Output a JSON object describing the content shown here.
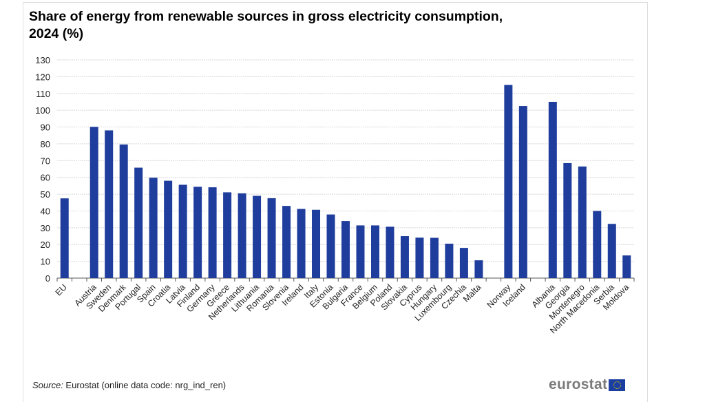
{
  "chart_data": {
    "type": "bar",
    "title": "Share of energy from renewable sources in gross electricity consumption, 2024 (%)",
    "xlabel": "",
    "ylabel": "",
    "ylim": [
      0,
      130
    ],
    "yticks": [
      0,
      10,
      20,
      30,
      40,
      50,
      60,
      70,
      80,
      90,
      100,
      110,
      120,
      130
    ],
    "grid": true,
    "bar_color": "#1f3d9c",
    "groups": [
      {
        "categories": [
          "EU"
        ],
        "values": [
          47.5
        ]
      },
      {
        "categories": [
          "Austria",
          "Sweden",
          "Denmark",
          "Portugal",
          "Spain",
          "Croatia",
          "Latvia",
          "Finland",
          "Germany",
          "Greece",
          "Netherlands",
          "Lithuania",
          "Romania",
          "Slovenia",
          "Ireland",
          "Italy",
          "Estonia",
          "Bulgaria",
          "France",
          "Belgium",
          "Poland",
          "Slovakia",
          "Cyprus",
          "Hungary",
          "Luxembourg",
          "Czechia",
          "Malta"
        ],
        "values": [
          90.1,
          88.0,
          79.6,
          65.8,
          59.8,
          58.0,
          55.6,
          54.4,
          54.1,
          51.1,
          50.5,
          49.0,
          47.6,
          43.0,
          41.2,
          40.7,
          37.9,
          34.0,
          31.4,
          31.4,
          30.6,
          25.0,
          24.1,
          24.0,
          20.5,
          18.0,
          10.6
        ]
      },
      {
        "categories": [
          "Norway",
          "Iceland"
        ],
        "values": [
          115.1,
          102.5
        ]
      },
      {
        "categories": [
          "Albania",
          "Georgia",
          "Montenegro",
          "North Macedonia",
          "Serbia",
          "Moldova"
        ],
        "values": [
          105.0,
          68.5,
          66.5,
          40.0,
          32.3,
          13.5
        ]
      }
    ]
  },
  "source": {
    "label": "Source:",
    "text": " Eurostat (online data code: nrg_ind_ren)"
  },
  "logo": {
    "text": "eurostat"
  }
}
